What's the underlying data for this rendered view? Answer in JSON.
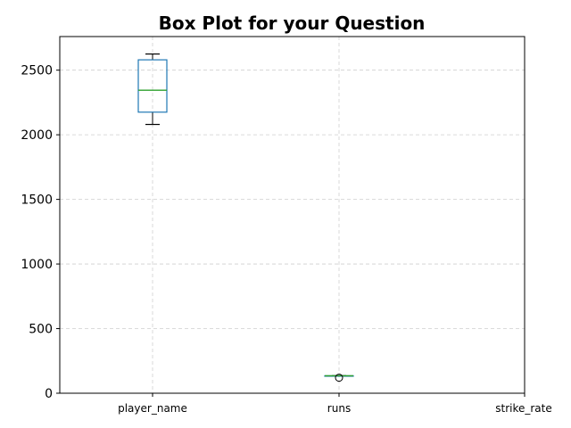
{
  "chart_data": {
    "type": "box",
    "title": "Box Plot for your Question",
    "xlabel": "",
    "ylabel": "",
    "categories": [
      "player_name",
      "runs",
      "strike_rate"
    ],
    "ylim": [
      0,
      2760
    ],
    "yticks": [
      0,
      500,
      1000,
      1500,
      2000,
      2500
    ],
    "grid": true,
    "boxes": [
      {
        "category": "player_name",
        "whisker_low": 2080,
        "q1": 2175,
        "median": 2345,
        "q3": 2580,
        "whisker_high": 2625,
        "outliers": []
      },
      {
        "category": "runs",
        "whisker_low": 135,
        "q1": 135,
        "median": 135,
        "q3": 135,
        "whisker_high": 135,
        "outliers": [
          120
        ]
      },
      {
        "category": "strike_rate",
        "whisker_low": null,
        "q1": null,
        "median": null,
        "q3": null,
        "whisker_high": null,
        "outliers": []
      }
    ],
    "colors": {
      "box": "#1f77b4",
      "median": "#2ca02c",
      "whisker": "#000000",
      "outlier": "#000000",
      "axes": "#000000"
    }
  }
}
